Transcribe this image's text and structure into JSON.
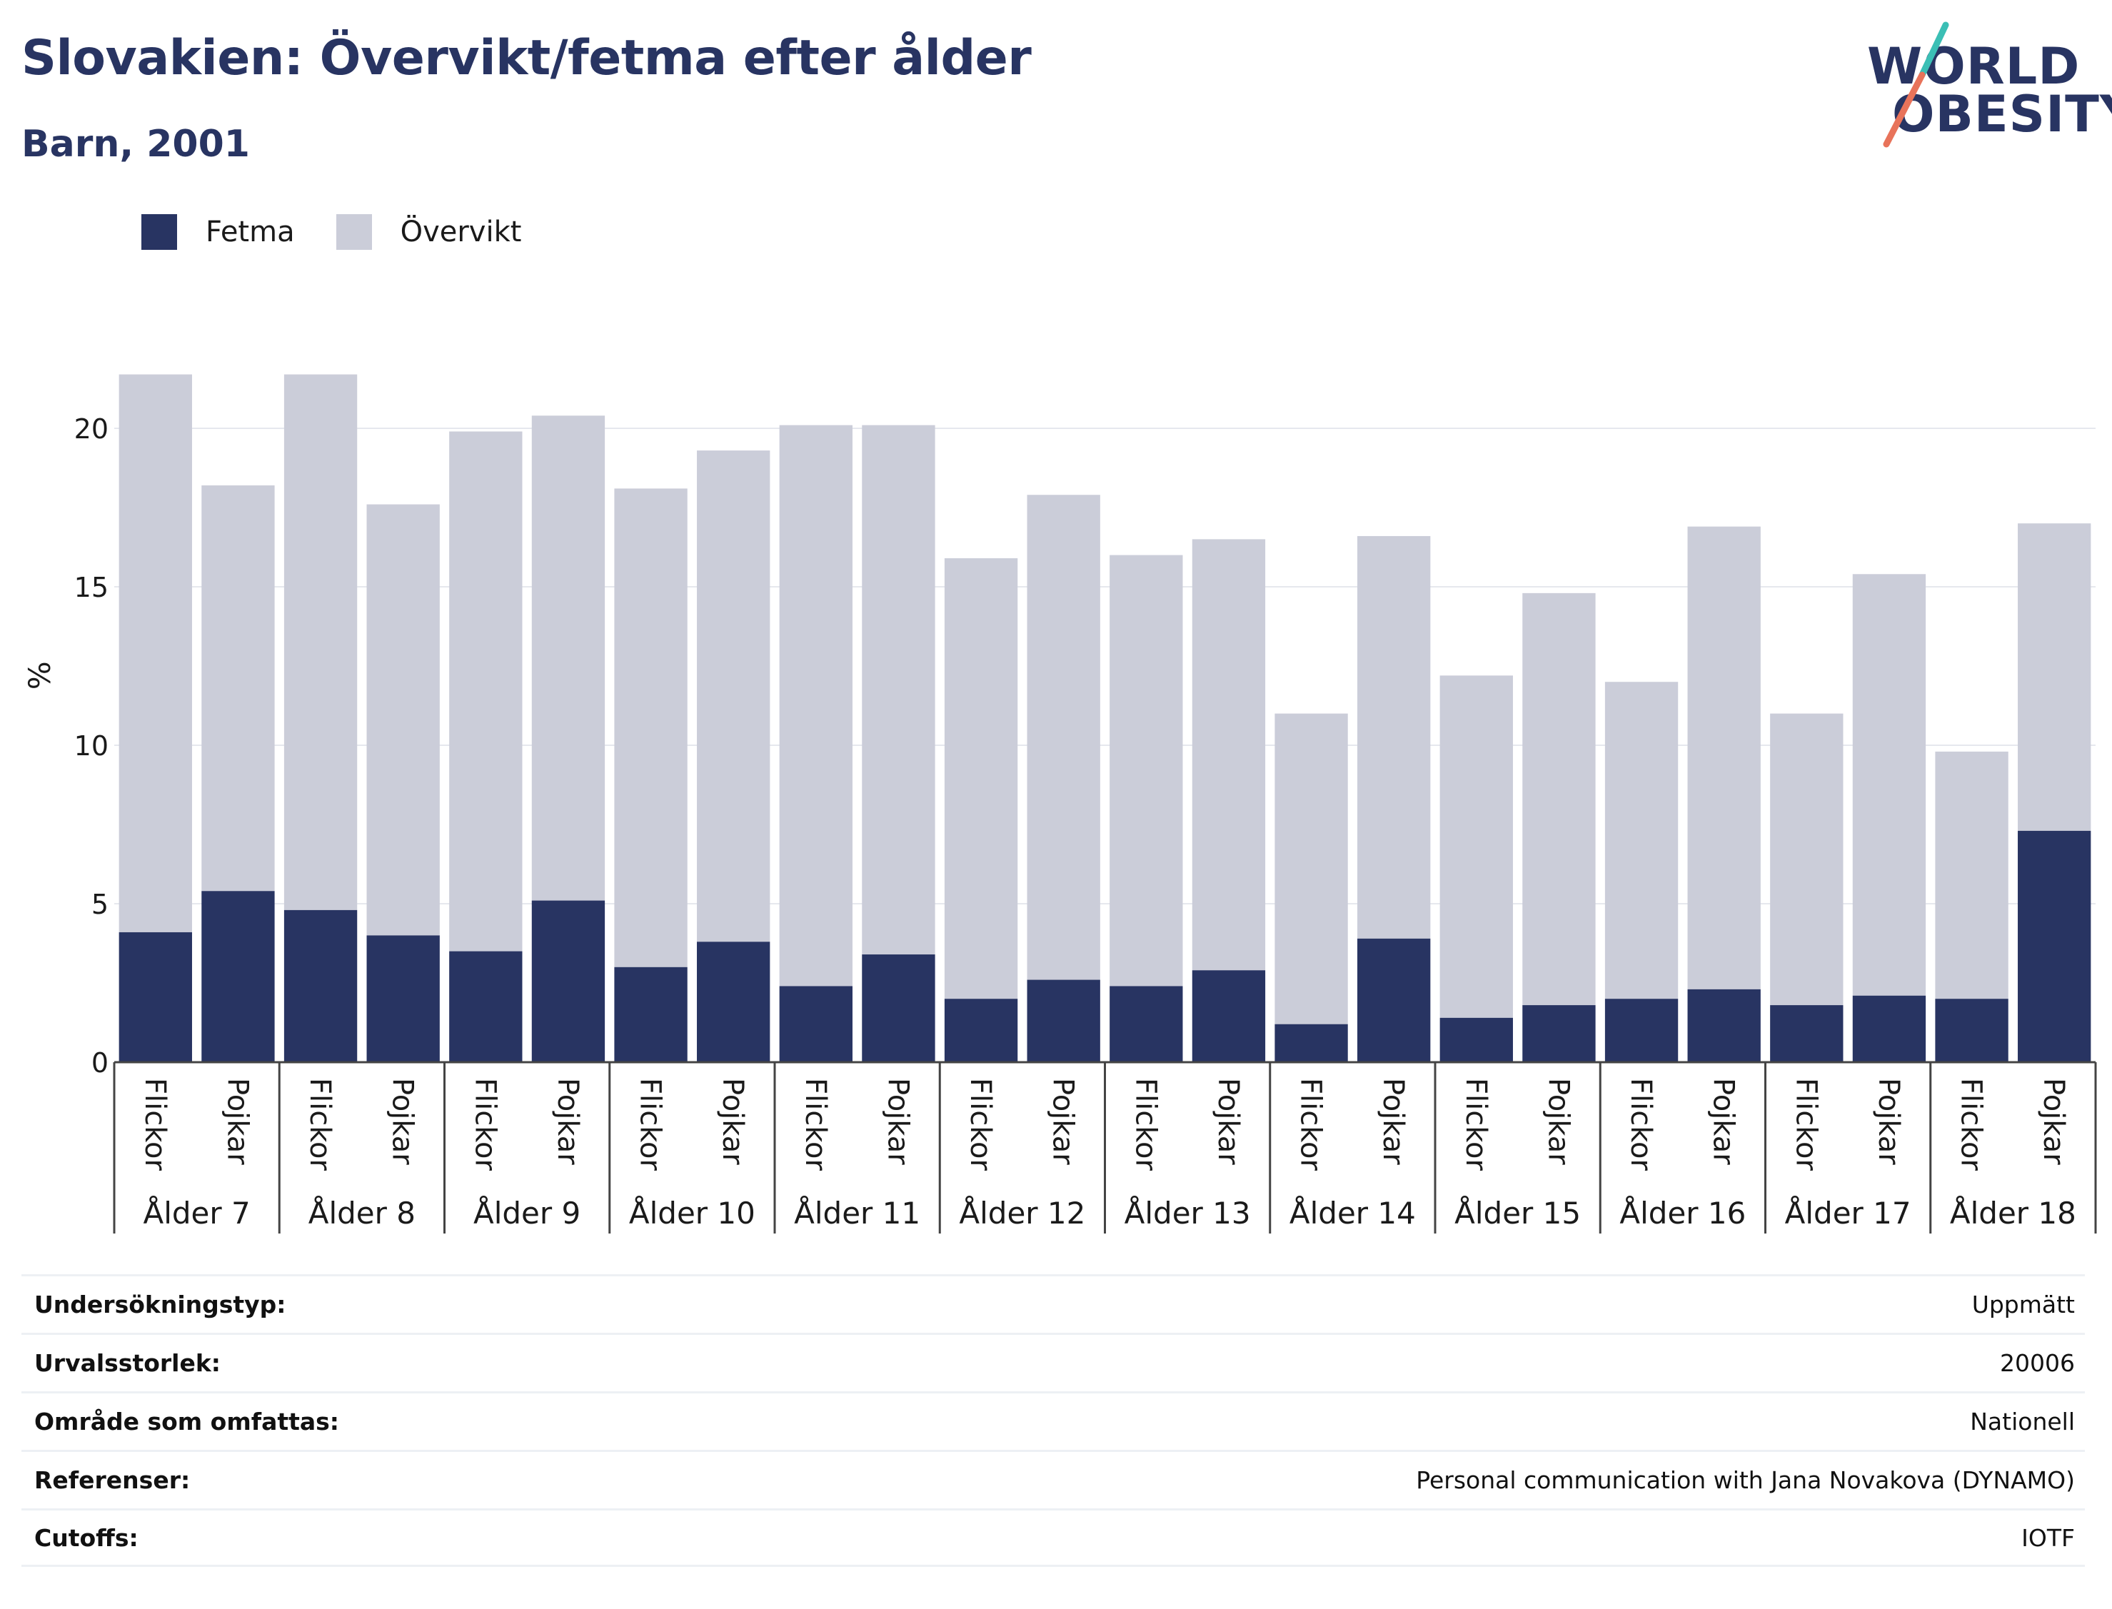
{
  "header": {
    "title": "Slovakien: Övervikt/fetma efter ålder",
    "subtitle": "Barn, 2001"
  },
  "logo": {
    "line1": "WORLD",
    "line2": "OBESITY",
    "colors": {
      "text": "#283462",
      "slash_top": "#3bbfb5",
      "slash_bottom": "#e8735a"
    }
  },
  "legend": [
    {
      "label": "Fetma",
      "color": "#283462"
    },
    {
      "label": "Övervikt",
      "color": "#cbcdd9"
    }
  ],
  "chart_data": {
    "type": "bar",
    "stacked": true,
    "ylabel": "%",
    "xlabel": "",
    "ylim": [
      0,
      22
    ],
    "yticks": [
      0,
      5,
      10,
      15,
      20
    ],
    "grid": true,
    "legend_position": "top-left",
    "groups": [
      "Ålder 7",
      "Ålder 8",
      "Ålder 9",
      "Ålder 10",
      "Ålder 11",
      "Ålder 12",
      "Ålder 13",
      "Ålder 14",
      "Ålder 15",
      "Ålder 16",
      "Ålder 17",
      "Ålder 18"
    ],
    "subcategories": [
      "Flickor",
      "Pojkar"
    ],
    "series": [
      {
        "name": "Fetma",
        "color": "#283462",
        "values": [
          4.1,
          5.4,
          4.8,
          4.0,
          3.5,
          5.1,
          3.0,
          3.8,
          2.4,
          3.4,
          2.0,
          2.6,
          2.4,
          2.9,
          1.2,
          3.9,
          1.4,
          1.8,
          2.0,
          2.3,
          1.8,
          2.1,
          2.0,
          7.3
        ]
      },
      {
        "name": "Övervikt",
        "color": "#cbcdd9",
        "totals": [
          21.7,
          18.2,
          21.7,
          17.6,
          19.9,
          20.4,
          18.1,
          19.3,
          20.1,
          20.1,
          15.9,
          17.9,
          16.0,
          16.5,
          11.0,
          16.6,
          12.2,
          14.8,
          12.0,
          16.9,
          11.0,
          15.4,
          9.8,
          17.0
        ]
      }
    ]
  },
  "info_table": [
    {
      "key": "Undersökningstyp:",
      "value": "Uppmätt"
    },
    {
      "key": "Urvalsstorlek:",
      "value": "20006"
    },
    {
      "key": "Område som omfattas:",
      "value": "Nationell"
    },
    {
      "key": "Referenser:",
      "value": "Personal communication with Jana Novakova (DYNAMO)"
    },
    {
      "key": "Cutoffs:",
      "value": "IOTF"
    }
  ]
}
